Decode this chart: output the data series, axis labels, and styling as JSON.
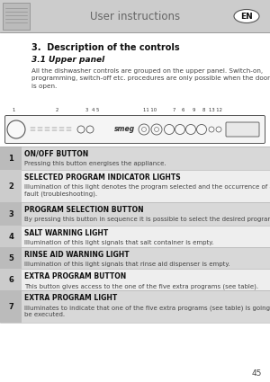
{
  "page_bg": "#ffffff",
  "header_bg": "#cccccc",
  "header_text": "User instructions",
  "header_text_color": "#666666",
  "en_badge_text": "EN",
  "title": "3.  Description of the controls",
  "subtitle": "3.1 Upper panel",
  "body_text": "All the dishwasher controls are grouped on the upper panel. Switch-on,\nprogramming, switch-off etc. procedures are only possible when the door\nis open.",
  "panel_numbers_top": "1            2          3  4 5              11 10  7  6   9  8  13 12",
  "table_rows": [
    {
      "num": "1",
      "heading": "ON/OFF BUTTON",
      "detail": "Pressing this button energises the appliance.",
      "shade": "#d8d8d8",
      "num_shade": "#bbbbbb",
      "detail_lines": 1
    },
    {
      "num": "2",
      "heading": "SELECTED PROGRAM INDICATOR LIGHTS",
      "detail": "Illumination of this light denotes the program selected and the occurrence of a\nfault (troubleshooting).",
      "shade": "#eeeeee",
      "num_shade": "#cccccc",
      "detail_lines": 2
    },
    {
      "num": "3",
      "heading": "PROGRAM SELECTION BUTTON",
      "detail": "By pressing this button in sequence it is possible to select the desired program.",
      "shade": "#d8d8d8",
      "num_shade": "#bbbbbb",
      "detail_lines": 1
    },
    {
      "num": "4",
      "heading": "SALT WARNING LIGHT",
      "detail": "Illumination of this light signals that salt container is empty.",
      "shade": "#eeeeee",
      "num_shade": "#cccccc",
      "detail_lines": 1
    },
    {
      "num": "5",
      "heading": "RINSE AID WARNING LIGHT",
      "detail": "Illumination of this light signals that rinse aid dispenser is empty.",
      "shade": "#d8d8d8",
      "num_shade": "#bbbbbb",
      "detail_lines": 1
    },
    {
      "num": "6",
      "heading": "EXTRA PROGRAM BUTTON",
      "detail": "This button gives access to the one of the five extra programs (see table).",
      "shade": "#eeeeee",
      "num_shade": "#cccccc",
      "detail_lines": 1
    },
    {
      "num": "7",
      "heading": "EXTRA PROGRAM LIGHT",
      "detail": "Illuminates to indicate that one of the five extra programs (see table) is going to\nbe executed.",
      "shade": "#d8d8d8",
      "num_shade": "#bbbbbb",
      "detail_lines": 2
    }
  ],
  "page_number": "45",
  "text_color": "#444444",
  "heading_color": "#111111"
}
